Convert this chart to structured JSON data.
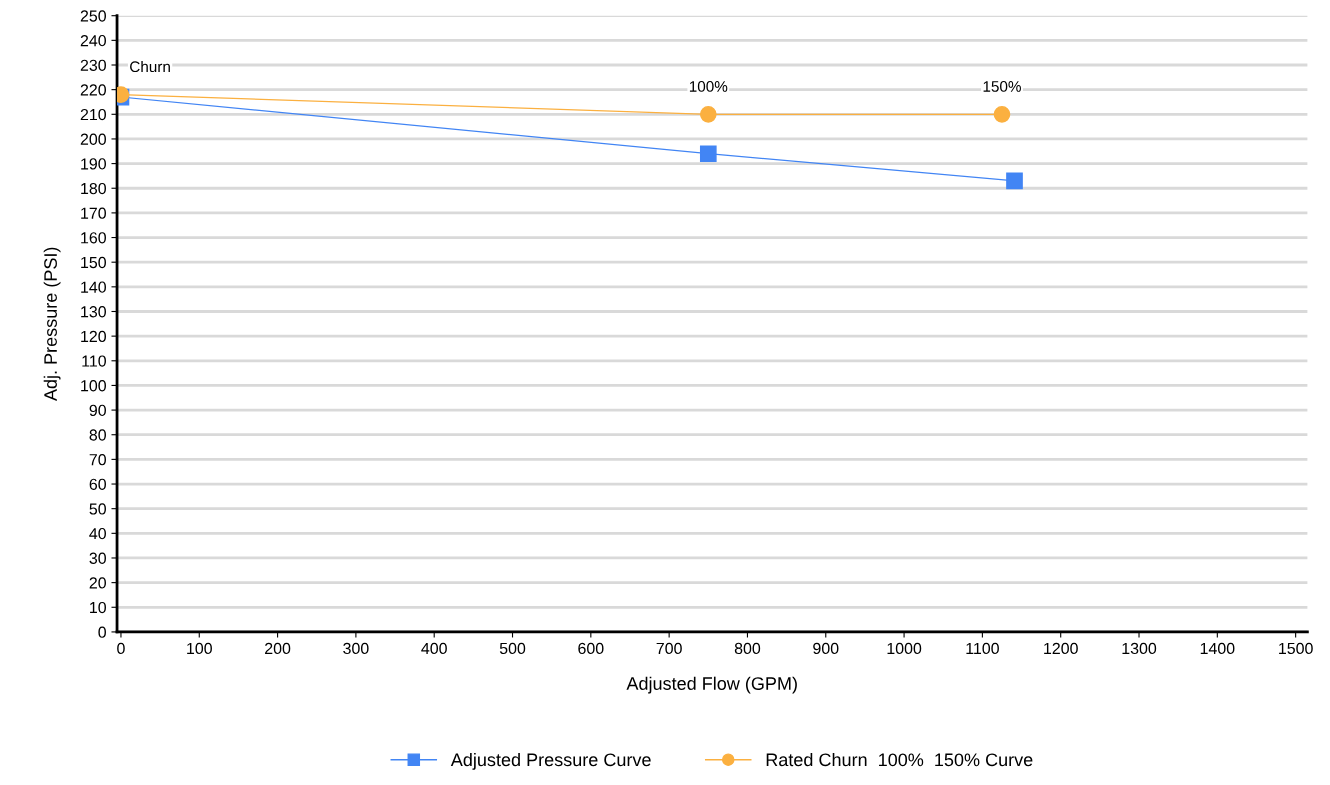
{
  "chart_data": {
    "type": "line",
    "xlabel": "Adjusted Flow (GPM)",
    "ylabel": "Adj. Pressure (PSI)",
    "xlim": [
      -5,
      1515
    ],
    "ylim": [
      0,
      250
    ],
    "xticks": [
      0,
      100,
      200,
      300,
      400,
      500,
      600,
      700,
      800,
      900,
      1000,
      1100,
      1200,
      1300,
      1400,
      1500
    ],
    "yticks": [
      0,
      10,
      20,
      30,
      40,
      50,
      60,
      70,
      80,
      90,
      100,
      110,
      120,
      130,
      140,
      150,
      160,
      170,
      180,
      190,
      200,
      210,
      220,
      230,
      240,
      250
    ],
    "grid": "y",
    "legend": "bottom",
    "line_style": "solid",
    "series": [
      {
        "name": "Adjusted Pressure Curve",
        "color": "#4285f4",
        "marker": "square",
        "x": [
          0,
          750,
          1141
        ],
        "values": [
          217,
          194,
          183
        ]
      },
      {
        "name": "Rated Churn  100%  150% Curve",
        "color": "#fbb040",
        "marker": "circle",
        "x": [
          0,
          750,
          1125
        ],
        "values": [
          218,
          210,
          210
        ]
      }
    ],
    "annotations": [
      {
        "text": "Churn",
        "x": 0,
        "y": 218
      },
      {
        "text": "100%",
        "x": 750,
        "y": 210
      },
      {
        "text": "150%",
        "x": 1125,
        "y": 210
      }
    ]
  }
}
